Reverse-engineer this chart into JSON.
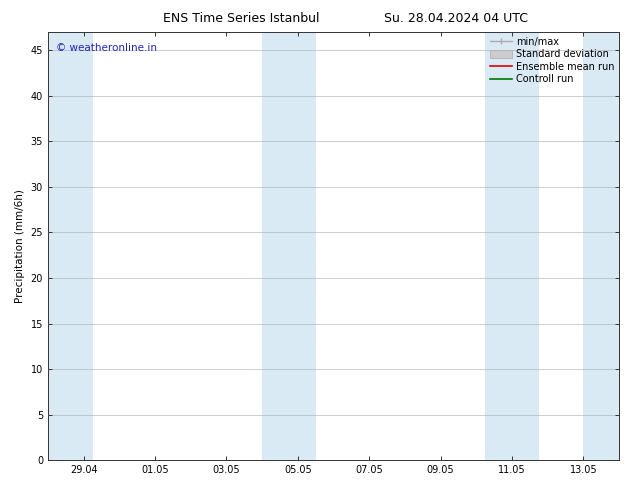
{
  "title_left": "ENS Time Series Istanbul",
  "title_right": "Su. 28.04.2024 04 UTC",
  "ylabel": "Precipitation (mm/6h)",
  "background_color": "#ffffff",
  "band_color": "#daeaf5",
  "band_positions": [
    [
      0.0,
      1.25
    ],
    [
      6.0,
      7.5
    ],
    [
      12.25,
      13.75
    ],
    [
      15.0,
      16.0
    ]
  ],
  "ylim": [
    0,
    47
  ],
  "yticks": [
    0,
    5,
    10,
    15,
    20,
    25,
    30,
    35,
    40,
    45
  ],
  "xtick_positions": [
    1,
    3,
    5,
    7,
    9,
    11,
    13,
    15
  ],
  "xtick_labels": [
    "29.04",
    "01.05",
    "03.05",
    "05.05",
    "07.05",
    "09.05",
    "11.05",
    "13.05"
  ],
  "xlim": [
    0,
    16
  ],
  "watermark_text": "© weatheronline.in",
  "watermark_color": "#2222cc",
  "watermark_fontsize": 7.5,
  "title_fontsize": 9,
  "tick_fontsize": 7,
  "ylabel_fontsize": 7.5,
  "legend_fontsize": 7,
  "legend_items": [
    {
      "label": "min/max",
      "color": "#aaaaaa",
      "style": "errbar"
    },
    {
      "label": "Standard deviation",
      "color": "#cccccc",
      "style": "patch"
    },
    {
      "label": "Ensemble mean run",
      "color": "#dd0000",
      "style": "line"
    },
    {
      "label": "Controll run",
      "color": "#007700",
      "style": "line"
    }
  ]
}
